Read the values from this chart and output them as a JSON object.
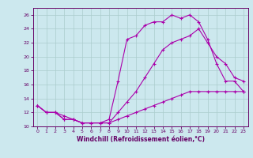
{
  "xlabel": "Windchill (Refroidissement éolien,°C)",
  "background_color": "#cce8ee",
  "grid_color": "#aacccc",
  "line_color": "#aa00aa",
  "xlim": [
    -0.5,
    23.5
  ],
  "ylim": [
    10,
    27
  ],
  "xticks": [
    0,
    1,
    2,
    3,
    4,
    5,
    6,
    7,
    8,
    9,
    10,
    11,
    12,
    13,
    14,
    15,
    16,
    17,
    18,
    19,
    20,
    21,
    22,
    23
  ],
  "yticks": [
    10,
    12,
    14,
    16,
    18,
    20,
    22,
    24,
    26
  ],
  "line1_x": [
    0,
    1,
    2,
    3,
    4,
    5,
    6,
    7,
    8,
    9,
    10,
    11,
    12,
    13,
    14,
    15,
    16,
    17,
    18,
    19,
    20,
    21,
    22,
    23
  ],
  "line1_y": [
    13,
    12,
    12,
    11,
    11,
    10.5,
    10.5,
    10.5,
    10.5,
    11,
    11.5,
    12,
    12.5,
    13,
    13.5,
    14,
    14.5,
    15,
    15,
    15,
    15,
    15,
    15,
    15
  ],
  "line2_x": [
    0,
    1,
    2,
    3,
    4,
    5,
    6,
    7,
    8,
    9,
    10,
    11,
    12,
    13,
    14,
    15,
    16,
    17,
    18,
    19,
    20,
    21,
    22,
    23
  ],
  "line2_y": [
    13,
    12,
    12,
    11,
    11,
    10.5,
    10.5,
    10.5,
    11,
    16.5,
    22.5,
    23,
    24.5,
    25,
    25,
    26,
    25.5,
    26,
    25,
    22.5,
    19,
    16.5,
    16.5,
    15
  ],
  "line3_x": [
    0,
    1,
    2,
    3,
    4,
    5,
    6,
    7,
    8,
    9,
    10,
    11,
    12,
    13,
    14,
    15,
    16,
    17,
    18,
    19,
    20,
    21,
    22,
    23
  ],
  "line3_y": [
    13,
    12,
    12,
    11.5,
    11,
    10.5,
    10.5,
    10.5,
    10.5,
    12,
    13.5,
    15,
    17,
    19,
    21,
    22,
    22.5,
    23,
    24,
    22,
    20,
    19,
    17,
    16.5
  ]
}
